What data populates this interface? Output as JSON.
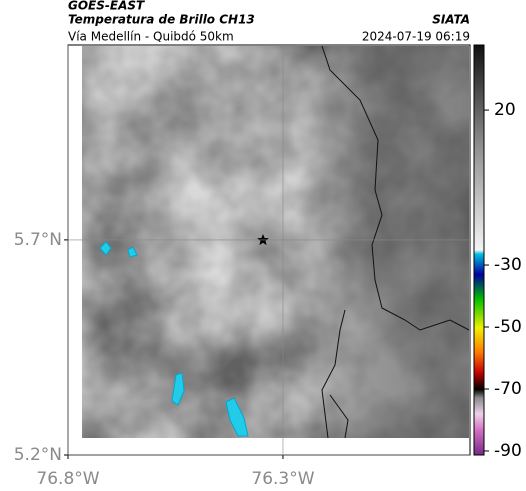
{
  "header": {
    "satellite": "GOES-EAST",
    "product": "Temperatura de Brillo CH13",
    "source": "SIATA",
    "route": "Vía Medellín - Quibdó 50km",
    "datetime": "2024-07-19 06:19"
  },
  "map": {
    "xlim": [
      -76.8,
      -75.865
    ],
    "ylim": [
      5.2,
      6.153
    ],
    "xticks": [
      {
        "value": -76.8,
        "label": "76.8°W"
      },
      {
        "value": -76.3,
        "label": "76.3°W"
      }
    ],
    "yticks": [
      {
        "value": 5.2,
        "label": "5.2°N"
      },
      {
        "value": 5.7,
        "label": "5.7°N"
      }
    ]
  },
  "colorbar": {
    "range": [
      -91.3,
      41
    ],
    "ticks": [
      20,
      -30,
      -50,
      -70,
      -90
    ]
  }
}
